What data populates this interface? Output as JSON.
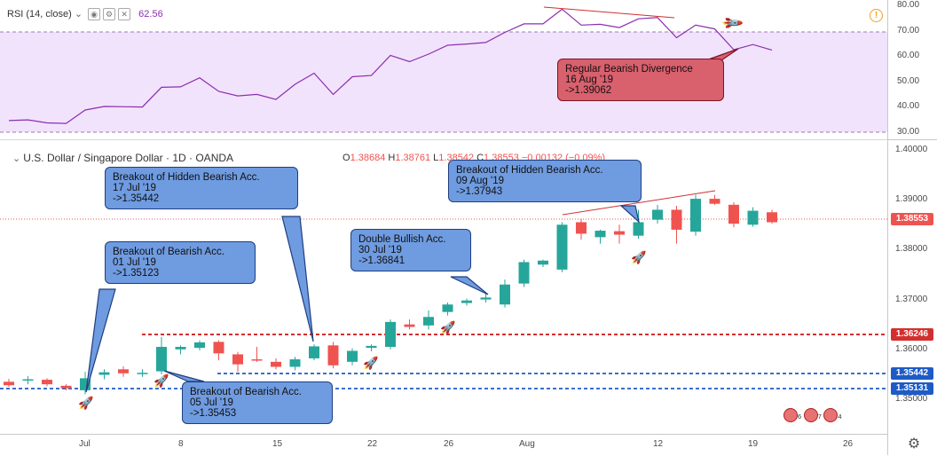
{
  "rsi": {
    "label": "RSI (14, close)",
    "value": "62.56",
    "axis_ticks": [
      "80.00",
      "70.00",
      "60.00",
      "50.00",
      "40.00",
      "30.00"
    ],
    "values": [
      34.6,
      34.9,
      33.7,
      33.5,
      38.8,
      40.2,
      40.1,
      40.0,
      47.8,
      48.0,
      51.6,
      46.2,
      44.4,
      45.0,
      43.0,
      49.0,
      53.4,
      45.0,
      52.0,
      52.5,
      60.5,
      58.0,
      61.0,
      64.5,
      65.0,
      65.6,
      69.6,
      73.0,
      73.0,
      78.8,
      72.5,
      72.8,
      71.5,
      75.0,
      75.5,
      67.5,
      72.5,
      71.0,
      62.7,
      64.8,
      62.6
    ]
  },
  "price": {
    "title": "U.S. Dollar / Singapore Dollar · 1D · OANDA",
    "ohlc": {
      "o": "1.38684",
      "h": "1.38761",
      "l": "1.38542",
      "c": "1.38553",
      "chg": "−0.00132 (−0.09%)"
    },
    "axis_ticks": [
      "1.40000",
      "1.39000",
      "1.38000",
      "1.37000",
      "1.36000",
      "1.35000"
    ],
    "current_price": "1.38553",
    "level_red": "1.36246",
    "level_blue_1": "1.35442",
    "level_blue_2": "1.35131",
    "date_labels": [
      "Jul",
      "8",
      "15",
      "22",
      "26",
      "Aug",
      "12",
      "19",
      "26"
    ],
    "candles": [
      [
        1.3535,
        1.3541,
        1.3525,
        1.3528
      ],
      [
        1.3538,
        1.3546,
        1.353,
        1.354
      ],
      [
        1.3539,
        1.3542,
        1.3526,
        1.353
      ],
      [
        1.3527,
        1.353,
        1.3518,
        1.3522
      ],
      [
        1.3518,
        1.3555,
        1.351,
        1.3542
      ],
      [
        1.3549,
        1.356,
        1.354,
        1.3554
      ],
      [
        1.356,
        1.3566,
        1.3545,
        1.3552
      ],
      [
        1.3553,
        1.356,
        1.3545,
        1.3553
      ],
      [
        1.3556,
        1.3625,
        1.355,
        1.3605
      ],
      [
        1.36,
        1.3608,
        1.359,
        1.3605
      ],
      [
        1.3603,
        1.3618,
        1.3598,
        1.3614
      ],
      [
        1.3615,
        1.3618,
        1.3578,
        1.3592
      ],
      [
        1.359,
        1.3595,
        1.3555,
        1.357
      ],
      [
        1.358,
        1.3605,
        1.3575,
        1.3578
      ],
      [
        1.3575,
        1.3582,
        1.356,
        1.3565
      ],
      [
        1.3565,
        1.3585,
        1.3558,
        1.358
      ],
      [
        1.3582,
        1.361,
        1.3578,
        1.3606
      ],
      [
        1.3608,
        1.3615,
        1.3562,
        1.3568
      ],
      [
        1.3575,
        1.3602,
        1.3568,
        1.3597
      ],
      [
        1.3603,
        1.361,
        1.3596,
        1.3607
      ],
      [
        1.3605,
        1.366,
        1.36,
        1.3655
      ],
      [
        1.365,
        1.366,
        1.364,
        1.3645
      ],
      [
        1.3648,
        1.3678,
        1.364,
        1.3665
      ],
      [
        1.3675,
        1.3694,
        1.3668,
        1.369
      ],
      [
        1.3693,
        1.3702,
        1.3688,
        1.3698
      ],
      [
        1.37,
        1.3712,
        1.3694,
        1.3704
      ],
      [
        1.369,
        1.374,
        1.3684,
        1.373
      ],
      [
        1.3732,
        1.378,
        1.3725,
        1.3775
      ],
      [
        1.377,
        1.378,
        1.3765,
        1.3778
      ],
      [
        1.376,
        1.3855,
        1.3755,
        1.385
      ],
      [
        1.3855,
        1.3862,
        1.382,
        1.3832
      ],
      [
        1.3825,
        1.384,
        1.3812,
        1.3838
      ],
      [
        1.3837,
        1.385,
        1.3812,
        1.383
      ],
      [
        1.3828,
        1.388,
        1.3822,
        1.3855
      ],
      [
        1.386,
        1.389,
        1.3852,
        1.388
      ],
      [
        1.388,
        1.3888,
        1.3812,
        1.384
      ],
      [
        1.3836,
        1.391,
        1.3828,
        1.3902
      ],
      [
        1.3902,
        1.391,
        1.389,
        1.3892
      ],
      [
        1.389,
        1.3895,
        1.3845,
        1.3852
      ],
      [
        1.385,
        1.3885,
        1.3846,
        1.3878
      ],
      [
        1.3875,
        1.388,
        1.3852,
        1.3855
      ]
    ]
  },
  "callouts": {
    "c1": "Breakout of Hidden Bearish Acc.\n17 Jul '19\n->1.35442",
    "c2": "Breakout of Bearish Acc.\n01 Jul '19\n->1.35123",
    "c3": "Double Bullish Acc.\n30 Jul '19\n->1.36841",
    "c4": "Breakout of Hidden Bearish Acc.\n09 Aug '19\n->1.37943",
    "c5": "Breakout of Bearish Acc.\n05 Jul '19\n->1.35453",
    "c6": "Regular Bearish Divergence\n16 Aug '19\n->1.39062"
  },
  "event_badges": {
    "a": "6",
    "b": "7",
    "c": "4"
  },
  "colors": {
    "up": "#26a69a",
    "down": "#ef5350",
    "rsi_line": "#8b2fb0",
    "rsi_band": "#f1e3fb",
    "level_red": "#d32f2f",
    "level_blue": "#1e5bc6"
  },
  "icons": [
    "settings-icon",
    "eye-icon",
    "close-icon",
    "rocket-icon",
    "warning-icon"
  ]
}
